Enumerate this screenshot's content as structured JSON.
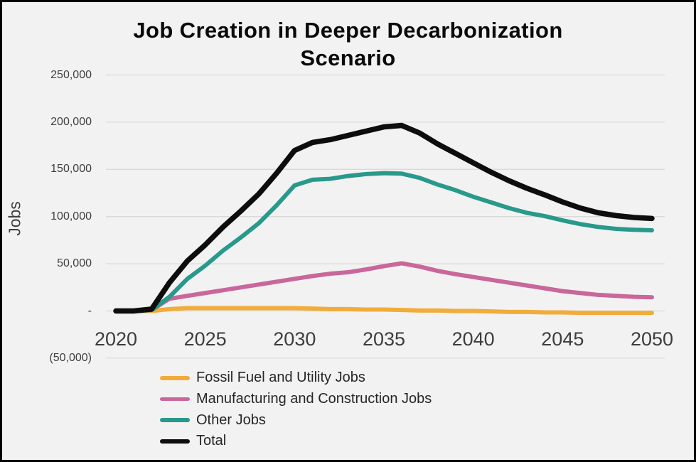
{
  "window": {
    "background_color": "#F2F2F2",
    "frame_border_color": "#000000"
  },
  "chart_data": {
    "type": "line",
    "title": "Job Creation in Deeper Decarbonization Scenario",
    "ylabel": "Jobs",
    "xlabel": "",
    "xlim": [
      2020,
      2050
    ],
    "ylim": [
      -50000,
      250000
    ],
    "grid": "horizontal",
    "gridline_color": "#D9D9D9",
    "legend_position": "bottom",
    "x": [
      2020,
      2021,
      2022,
      2023,
      2024,
      2025,
      2026,
      2027,
      2028,
      2029,
      2030,
      2031,
      2032,
      2033,
      2034,
      2035,
      2036,
      2037,
      2038,
      2039,
      2040,
      2041,
      2042,
      2043,
      2044,
      2045,
      2046,
      2047,
      2048,
      2049,
      2050
    ],
    "x_tick_labels": [
      "2020",
      "2025",
      "2030",
      "2035",
      "2040",
      "2045",
      "2050"
    ],
    "y_ticks": [
      {
        "value": 250000,
        "label": "250,000"
      },
      {
        "value": 200000,
        "label": "200,000"
      },
      {
        "value": 150000,
        "label": "150,000"
      },
      {
        "value": 100000,
        "label": "100,000"
      },
      {
        "value": 50000,
        "label": "50,000"
      },
      {
        "value": 0,
        "label": "-"
      },
      {
        "value": -50000,
        "label": "(50,000)"
      }
    ],
    "series": [
      {
        "name": "Fossil Fuel and Utility Jobs",
        "color": "#F1AC3A",
        "values": [
          0,
          0,
          0,
          2000,
          3000,
          3000,
          3000,
          3000,
          3000,
          3000,
          3000,
          2500,
          2000,
          2000,
          1500,
          1500,
          1000,
          500,
          500,
          0,
          0,
          -500,
          -1000,
          -1000,
          -1500,
          -1500,
          -2000,
          -2000,
          -2000,
          -2000,
          -2000
        ]
      },
      {
        "name": "Manufacturing and Construction Jobs",
        "color": "#C9679B",
        "values": [
          0,
          0,
          1000,
          13000,
          16000,
          19000,
          22000,
          25000,
          28000,
          31000,
          34000,
          37000,
          39500,
          41000,
          44000,
          47500,
          50500,
          47000,
          42500,
          39000,
          36000,
          33000,
          30000,
          27000,
          24000,
          21000,
          19000,
          17000,
          16000,
          15000,
          14500
        ]
      },
      {
        "name": "Other Jobs",
        "color": "#28998B",
        "values": [
          0,
          0,
          1000,
          15000,
          34000,
          48000,
          64000,
          78000,
          93000,
          112000,
          133000,
          139000,
          140000,
          143000,
          145000,
          146000,
          145500,
          141000,
          134000,
          128000,
          121000,
          115000,
          109000,
          104000,
          100500,
          96000,
          92000,
          89000,
          87000,
          86000,
          85500
        ]
      },
      {
        "name": "Total",
        "color": "#0D0D0D",
        "values": [
          0,
          0,
          2000,
          30000,
          53000,
          70000,
          89000,
          106000,
          124000,
          146000,
          170000,
          178500,
          181500,
          186000,
          190500,
          195000,
          196500,
          188500,
          177000,
          167000,
          157000,
          147000,
          138000,
          130000,
          123000,
          115500,
          109000,
          104000,
          101000,
          99000,
          98000
        ]
      }
    ]
  }
}
